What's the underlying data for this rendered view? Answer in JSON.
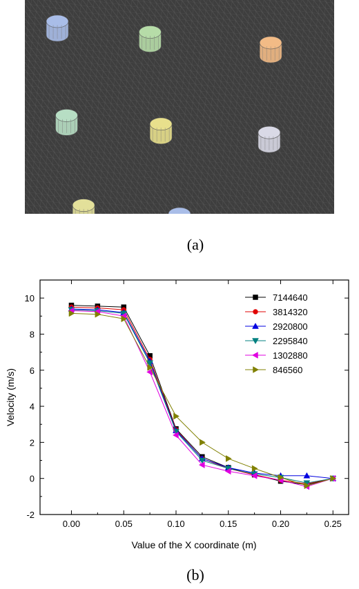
{
  "panel_a": {
    "label": "(a)",
    "mesh_color": "#404040",
    "cylinders": [
      {
        "fx": 0.105,
        "fy": 0.1,
        "color": "#a9bde8"
      },
      {
        "fx": 0.405,
        "fy": 0.15,
        "color": "#b6dca8"
      },
      {
        "fx": 0.795,
        "fy": 0.2,
        "color": "#f2bb86"
      },
      {
        "fx": 0.135,
        "fy": 0.54,
        "color": "#b7dec4"
      },
      {
        "fx": 0.44,
        "fy": 0.58,
        "color": "#e8e08c"
      },
      {
        "fx": 0.79,
        "fy": 0.62,
        "color": "#d9d9e6"
      },
      {
        "fx": 0.19,
        "fy": 0.96,
        "color": "#e3e09a"
      },
      {
        "fx": 0.5,
        "fy": 1.0,
        "color": "#a9bde8"
      }
    ]
  },
  "panel_b": {
    "label": "(b)"
  },
  "chart_data": {
    "type": "line",
    "title": "",
    "xlabel": "Value of the X coordinate (m)",
    "ylabel": "Velocity (m/s)",
    "xlim": [
      -0.03,
      0.265
    ],
    "ylim": [
      -2,
      11
    ],
    "xticks": [
      0.0,
      0.05,
      0.1,
      0.15,
      0.2,
      0.25
    ],
    "xtick_labels": [
      "0.00",
      "0.05",
      "0.10",
      "0.15",
      "0.20",
      "0.25"
    ],
    "yticks": [
      -2,
      0,
      2,
      4,
      6,
      8,
      10
    ],
    "ytick_labels": [
      "-2",
      "0",
      "2",
      "4",
      "6",
      "8",
      "10"
    ],
    "legend_position": "top-right",
    "x": [
      0.0,
      0.025,
      0.05,
      0.075,
      0.1,
      0.125,
      0.15,
      0.175,
      0.2,
      0.225,
      0.25
    ],
    "series": [
      {
        "name": "7144640",
        "color": "#000000",
        "marker": "square",
        "values": [
          9.6,
          9.55,
          9.5,
          6.8,
          2.75,
          1.2,
          0.6,
          0.2,
          -0.15,
          -0.35,
          0.0
        ]
      },
      {
        "name": "3814320",
        "color": "#e00000",
        "marker": "circle",
        "values": [
          9.5,
          9.45,
          9.35,
          6.6,
          2.7,
          1.1,
          0.55,
          0.2,
          -0.1,
          -0.3,
          0.0
        ]
      },
      {
        "name": "2920800",
        "color": "#0000e0",
        "marker": "triangle-up",
        "values": [
          9.4,
          9.35,
          9.2,
          6.5,
          2.65,
          1.1,
          0.6,
          0.3,
          0.15,
          0.15,
          0.0
        ]
      },
      {
        "name": "2295840",
        "color": "#008080",
        "marker": "triangle-down",
        "values": [
          9.35,
          9.3,
          9.15,
          6.4,
          2.6,
          1.0,
          0.55,
          0.25,
          0.05,
          -0.25,
          0.0
        ]
      },
      {
        "name": "1302880",
        "color": "#e000e0",
        "marker": "triangle-left",
        "values": [
          9.3,
          9.25,
          9.0,
          5.9,
          2.4,
          0.75,
          0.4,
          0.15,
          -0.1,
          -0.45,
          0.0
        ]
      },
      {
        "name": "846560",
        "color": "#808000",
        "marker": "triangle-right",
        "values": [
          9.15,
          9.1,
          8.85,
          6.15,
          3.45,
          2.0,
          1.1,
          0.55,
          0.05,
          -0.4,
          0.0
        ]
      }
    ]
  }
}
